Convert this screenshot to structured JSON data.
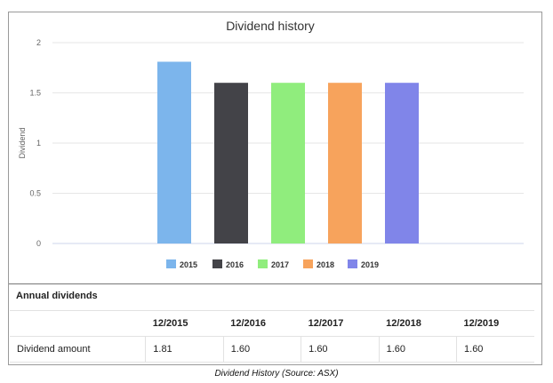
{
  "chart_data": {
    "type": "bar",
    "title": "Dividend history",
    "ylabel": "Dividend",
    "xlabel": "",
    "ylim": [
      0,
      2
    ],
    "yticks": [
      "0",
      "0.5",
      "1",
      "1.5",
      "2"
    ],
    "grid": true,
    "legend_position": "bottom",
    "categories": [
      "2015",
      "2016",
      "2017",
      "2018",
      "2019"
    ],
    "values": [
      1.81,
      1.6,
      1.6,
      1.6,
      1.6
    ],
    "colors": [
      "#7cb5ec",
      "#434348",
      "#90ed7d",
      "#f7a35c",
      "#8085e9"
    ]
  },
  "table": {
    "title": "Annual dividends",
    "headers": [
      "12/2015",
      "12/2016",
      "12/2017",
      "12/2018",
      "12/2019"
    ],
    "row_label": "Dividend amount",
    "values": [
      "1.81",
      "1.60",
      "1.60",
      "1.60",
      "1.60"
    ]
  },
  "caption": "Dividend History (Source: ASX)"
}
